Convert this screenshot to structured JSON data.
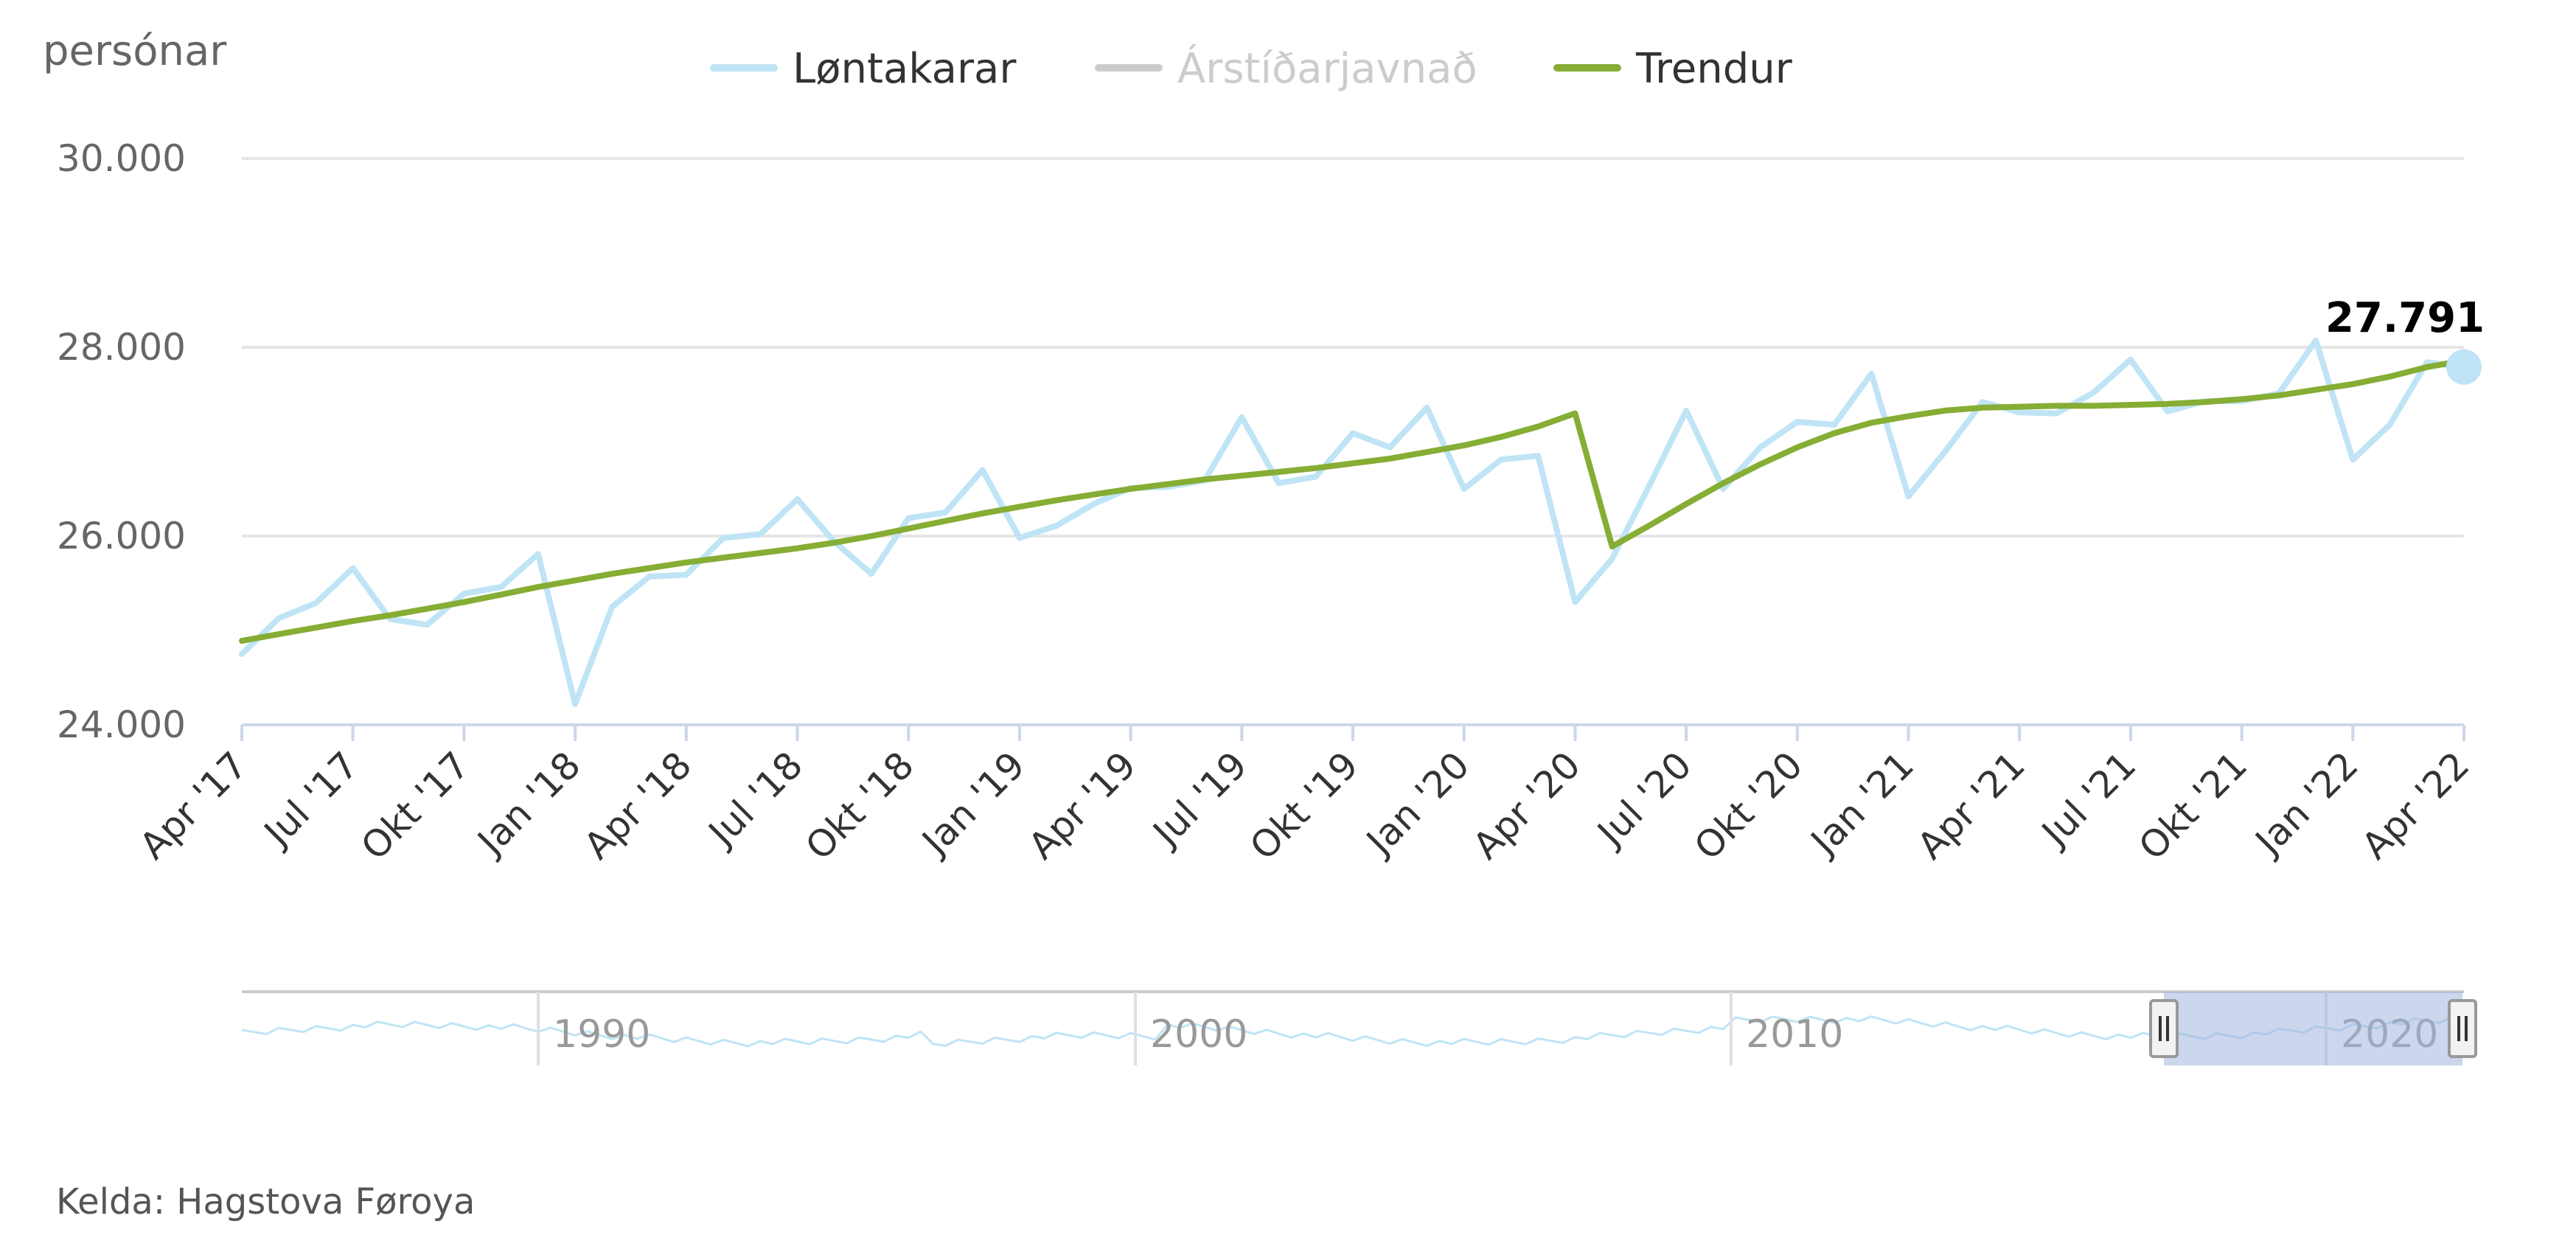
{
  "colors": {
    "series_main": "#bfe4f5",
    "series_seasonal": "#cccccc",
    "series_trend": "#86ad34",
    "grid": "#e6e6e6",
    "axis": "#ccd6eb",
    "navigator_mask": "#a3b5dc"
  },
  "source": "Kelda: Hagstova Føroya",
  "chart_data": {
    "type": "line",
    "ylabel": "persónar",
    "ylim": [
      24000,
      30000
    ],
    "yticks": [
      "24.000",
      "26.000",
      "28.000",
      "30.000"
    ],
    "xticks": [
      "Apr '17",
      "Jul '17",
      "Okt '17",
      "Jan '18",
      "Apr '18",
      "Jul '18",
      "Okt '18",
      "Jan '19",
      "Apr '19",
      "Jul '19",
      "Okt '19",
      "Jan '20",
      "Apr '20",
      "Jul '20",
      "Okt '20",
      "Jan '21",
      "Apr '21",
      "Jul '21",
      "Okt '21",
      "Jan '22",
      "Apr '22"
    ],
    "x": [
      "2017-04",
      "2017-05",
      "2017-06",
      "2017-07",
      "2017-08",
      "2017-09",
      "2017-10",
      "2017-11",
      "2017-12",
      "2018-01",
      "2018-02",
      "2018-03",
      "2018-04",
      "2018-05",
      "2018-06",
      "2018-07",
      "2018-08",
      "2018-09",
      "2018-10",
      "2018-11",
      "2018-12",
      "2019-01",
      "2019-02",
      "2019-03",
      "2019-04",
      "2019-05",
      "2019-06",
      "2019-07",
      "2019-08",
      "2019-09",
      "2019-10",
      "2019-11",
      "2019-12",
      "2020-01",
      "2020-02",
      "2020-03",
      "2020-04",
      "2020-05",
      "2020-06",
      "2020-07",
      "2020-08",
      "2020-09",
      "2020-10",
      "2020-11",
      "2020-12",
      "2021-01",
      "2021-02",
      "2021-03",
      "2021-04",
      "2021-05",
      "2021-06",
      "2021-07",
      "2021-08",
      "2021-09",
      "2021-10",
      "2021-11",
      "2021-12",
      "2022-01",
      "2022-02",
      "2022-03",
      "2022-04"
    ],
    "legend": [
      {
        "name": "Løntakarar",
        "visible": true
      },
      {
        "name": "Árstíðarjavnað",
        "visible": false
      },
      {
        "name": "Trendur",
        "visible": true
      }
    ],
    "legend_position": "top-center",
    "grid": true,
    "series": [
      {
        "name": "Løntakarar",
        "values": [
          24750,
          25130,
          25290,
          25660,
          25120,
          25060,
          25390,
          25460,
          25810,
          24220,
          25250,
          25570,
          25590,
          25980,
          26020,
          26390,
          25940,
          25600,
          26190,
          26250,
          26700,
          25980,
          26110,
          26340,
          26510,
          26520,
          26590,
          27260,
          26560,
          26630,
          27090,
          26940,
          27360,
          26500,
          26810,
          26850,
          25300,
          25760,
          26530,
          27330,
          26500,
          26940,
          27210,
          27180,
          27720,
          26420,
          26900,
          27420,
          27310,
          27300,
          27520,
          27870,
          27320,
          27430,
          27430,
          27510,
          28070,
          26810,
          27180,
          27840,
          27791
        ]
      },
      {
        "name": "Trendur",
        "values": [
          24890,
          24960,
          25030,
          25100,
          25160,
          25230,
          25300,
          25380,
          25460,
          25530,
          25600,
          25660,
          25720,
          25770,
          25820,
          25870,
          25930,
          26000,
          26080,
          26160,
          26240,
          26310,
          26380,
          26440,
          26500,
          26550,
          26600,
          26640,
          26680,
          26720,
          26770,
          26820,
          26890,
          26960,
          27050,
          27160,
          27300,
          25890,
          26110,
          26340,
          26560,
          26760,
          26940,
          27090,
          27200,
          27270,
          27330,
          27360,
          27370,
          27380,
          27380,
          27390,
          27400,
          27420,
          27450,
          27490,
          27550,
          27610,
          27690,
          27790,
          27860
        ]
      }
    ],
    "tooltip_label": "27.791",
    "navigator": {
      "labels": [
        "1990",
        "2000",
        "2010",
        "2020"
      ],
      "range_from": "2017-04",
      "range_to": "2022-04"
    }
  }
}
